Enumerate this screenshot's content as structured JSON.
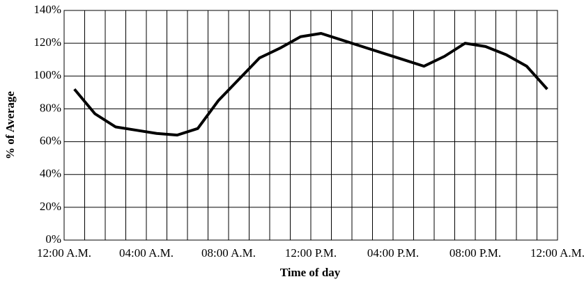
{
  "chart_data": {
    "type": "line",
    "x_label": "Time of day",
    "y_label": "% of Average",
    "x": [
      0.5,
      1.5,
      2.5,
      3.5,
      4.5,
      5.5,
      6.5,
      7.5,
      8.5,
      9.5,
      10.5,
      11.5,
      12.5,
      13.5,
      14.5,
      15.5,
      16.5,
      17.5,
      18.5,
      19.5,
      20.5,
      21.5,
      22.5,
      23.5
    ],
    "series": [
      {
        "color": "#000000",
        "values": [
          92,
          77,
          69,
          67,
          65,
          64,
          68,
          85,
          98,
          111,
          117,
          124,
          126,
          122,
          118,
          114,
          110,
          106,
          112,
          120,
          118,
          113,
          106,
          92
        ]
      }
    ],
    "xlim": [
      0,
      24
    ],
    "xticks": [
      {
        "value": 0,
        "label": "12:00 A.M."
      },
      {
        "value": 4,
        "label": "04:00 A.M."
      },
      {
        "value": 8,
        "label": "08:00 A.M."
      },
      {
        "value": 12,
        "label": "12:00 P.M."
      },
      {
        "value": 16,
        "label": "04:00 P.M."
      },
      {
        "value": 20,
        "label": "08:00 P.M."
      },
      {
        "value": 24,
        "label": "12:00 A.M."
      }
    ],
    "xminorticks": [
      1,
      2,
      3,
      5,
      6,
      7,
      9,
      10,
      11,
      13,
      14,
      15,
      17,
      18,
      19,
      21,
      22,
      23
    ],
    "ylim": [
      0,
      140
    ],
    "yticks": [
      {
        "value": 0,
        "label": "0%"
      },
      {
        "value": 20,
        "label": "20%"
      },
      {
        "value": 40,
        "label": "40%"
      },
      {
        "value": 60,
        "label": "60%"
      },
      {
        "value": 80,
        "label": "80%"
      },
      {
        "value": 100,
        "label": "100%"
      },
      {
        "value": 120,
        "label": "120%"
      },
      {
        "value": 140,
        "label": "140%"
      }
    ],
    "grid": true
  }
}
